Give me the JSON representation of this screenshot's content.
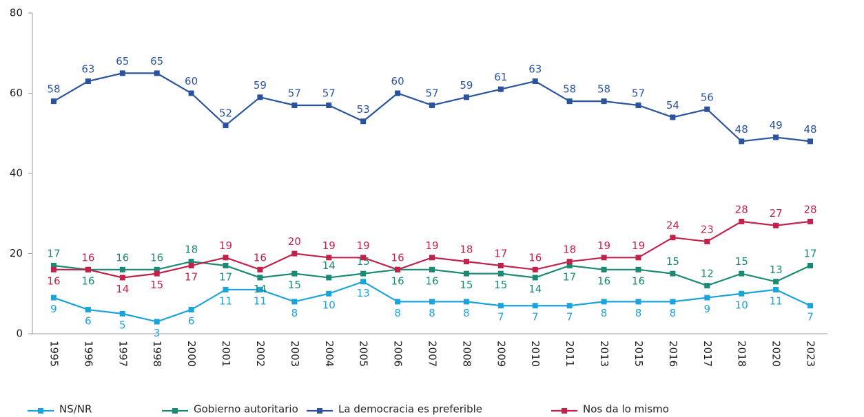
{
  "chart_data": {
    "type": "line",
    "categories": [
      "1995",
      "1996",
      "1997",
      "1998",
      "2000",
      "2001",
      "2002",
      "2003",
      "2004",
      "2005",
      "2006",
      "2007",
      "2008",
      "2009",
      "2010",
      "2011",
      "2013",
      "2015",
      "2016",
      "2017",
      "2018",
      "2020",
      "2023"
    ],
    "series": [
      {
        "name": "NS/NR",
        "color": "#1ba3dc",
        "values": [
          9,
          6,
          5,
          3,
          6,
          11,
          11,
          8,
          10,
          13,
          8,
          8,
          8,
          7,
          7,
          7,
          8,
          8,
          8,
          9,
          10,
          11,
          7
        ]
      },
      {
        "name": "Gobierno autoritario",
        "color": "#1a8a74",
        "values": [
          17,
          16,
          16,
          16,
          18,
          17,
          14,
          15,
          14,
          15,
          16,
          16,
          15,
          15,
          14,
          17,
          16,
          16,
          15,
          12,
          15,
          13,
          17
        ]
      },
      {
        "name": "La democracia es preferible",
        "color": "#2a539e",
        "values": [
          58,
          63,
          65,
          65,
          60,
          52,
          59,
          57,
          57,
          53,
          60,
          57,
          59,
          61,
          63,
          58,
          58,
          57,
          54,
          56,
          48,
          49,
          48
        ]
      },
      {
        "name": "Nos da lo mismo",
        "color": "#c0224a",
        "values": [
          16,
          16,
          14,
          15,
          17,
          19,
          16,
          20,
          19,
          19,
          16,
          19,
          18,
          17,
          16,
          18,
          19,
          19,
          24,
          23,
          28,
          27,
          28
        ]
      }
    ],
    "ylim": [
      0,
      80
    ],
    "yticks": [
      0,
      20,
      40,
      60,
      80
    ],
    "legend": "bottom"
  }
}
